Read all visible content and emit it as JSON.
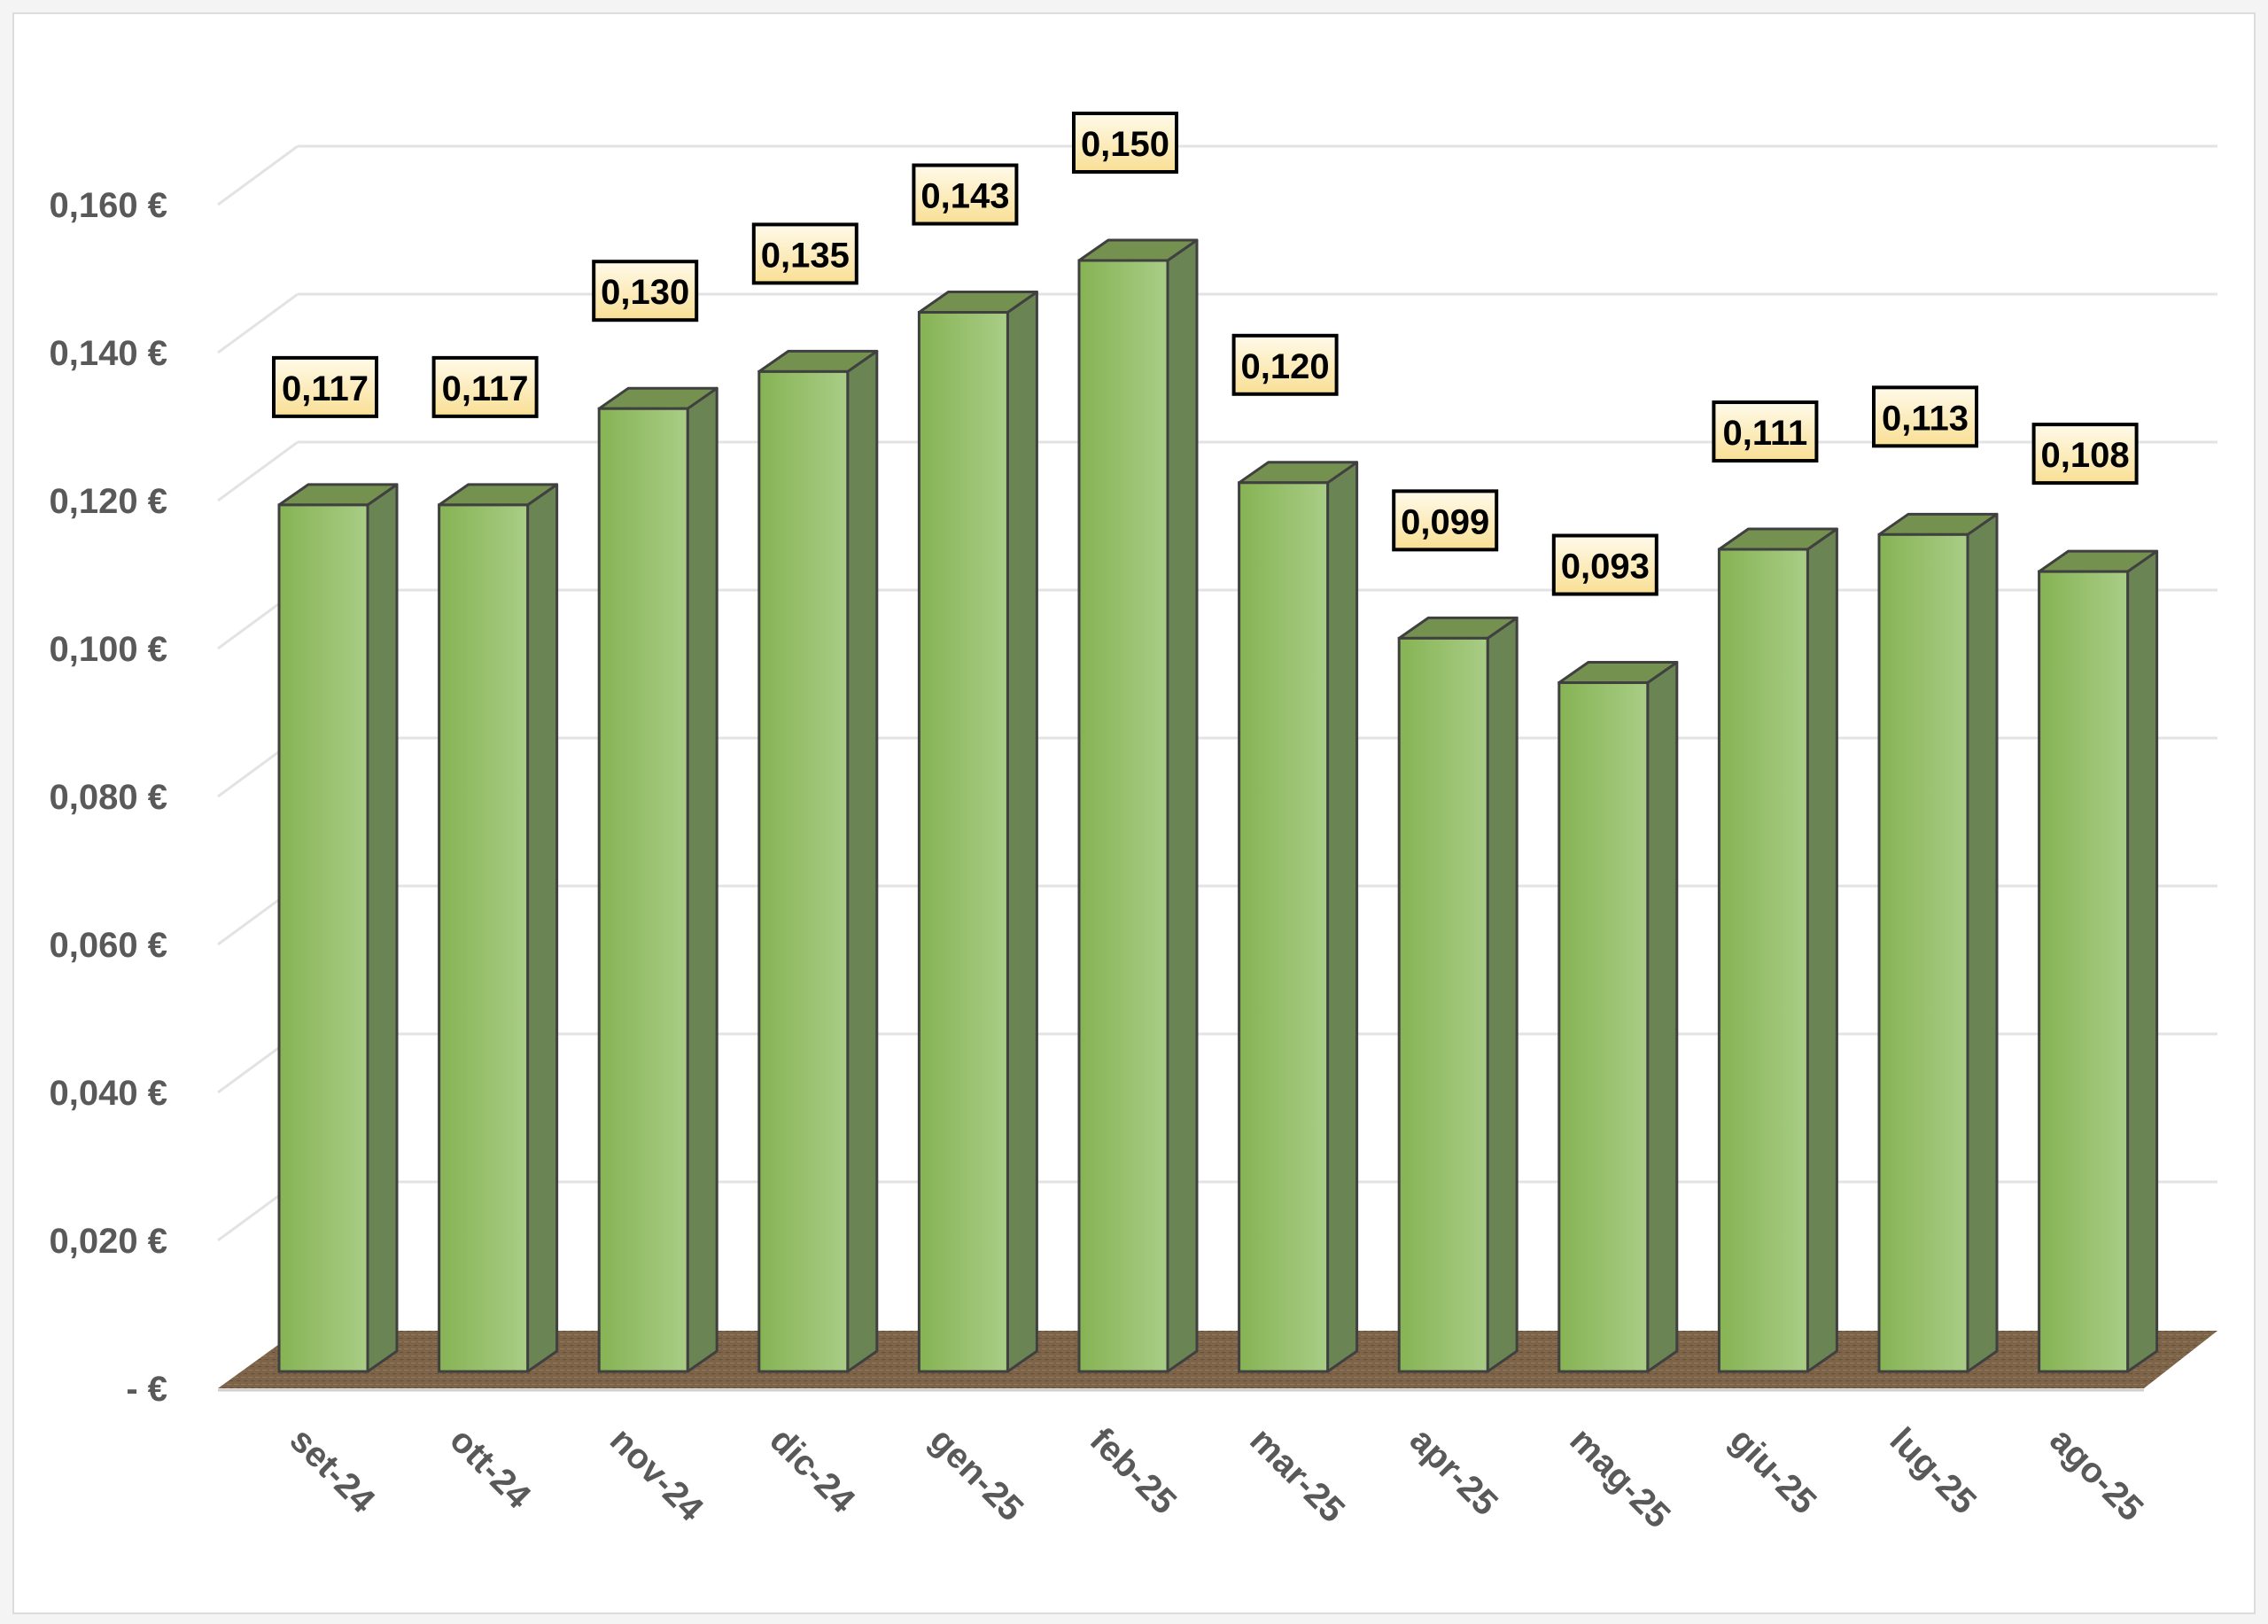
{
  "chart_data": {
    "type": "bar",
    "title": "",
    "xlabel": "",
    "ylabel": "",
    "categories": [
      "set-24",
      "ott-24",
      "nov-24",
      "dic-24",
      "gen-25",
      "feb-25",
      "mar-25",
      "apr-25",
      "mag-25",
      "giu-25",
      "lug-25",
      "ago-25"
    ],
    "values": [
      0.117,
      0.117,
      0.13,
      0.135,
      0.143,
      0.15,
      0.12,
      0.099,
      0.093,
      0.111,
      0.113,
      0.108
    ],
    "data_labels": [
      "0,117",
      "0,117",
      "0,130",
      "0,135",
      "0,143",
      "0,150",
      "0,120",
      "0,099",
      "0,093",
      "0,111",
      "0,113",
      "0,108"
    ],
    "ylim": [
      0,
      0.16
    ],
    "yticks": [
      0,
      0.02,
      0.04,
      0.06,
      0.08,
      0.1,
      0.12,
      0.14,
      0.16
    ],
    "ytick_labels": [
      "-  €",
      "0,020 €",
      "0,040 €",
      "0,060 €",
      "0,080 €",
      "0,100 €",
      "0,120 €",
      "0,140 €",
      "0,160 €"
    ],
    "grid": true,
    "style": "3d-column",
    "colors": {
      "bar": "#8cbb5c",
      "bar_side": "#6a8553",
      "bar_top": "#74914f",
      "floor": "#7a6248",
      "label_bg": "#fbe8a6"
    }
  }
}
